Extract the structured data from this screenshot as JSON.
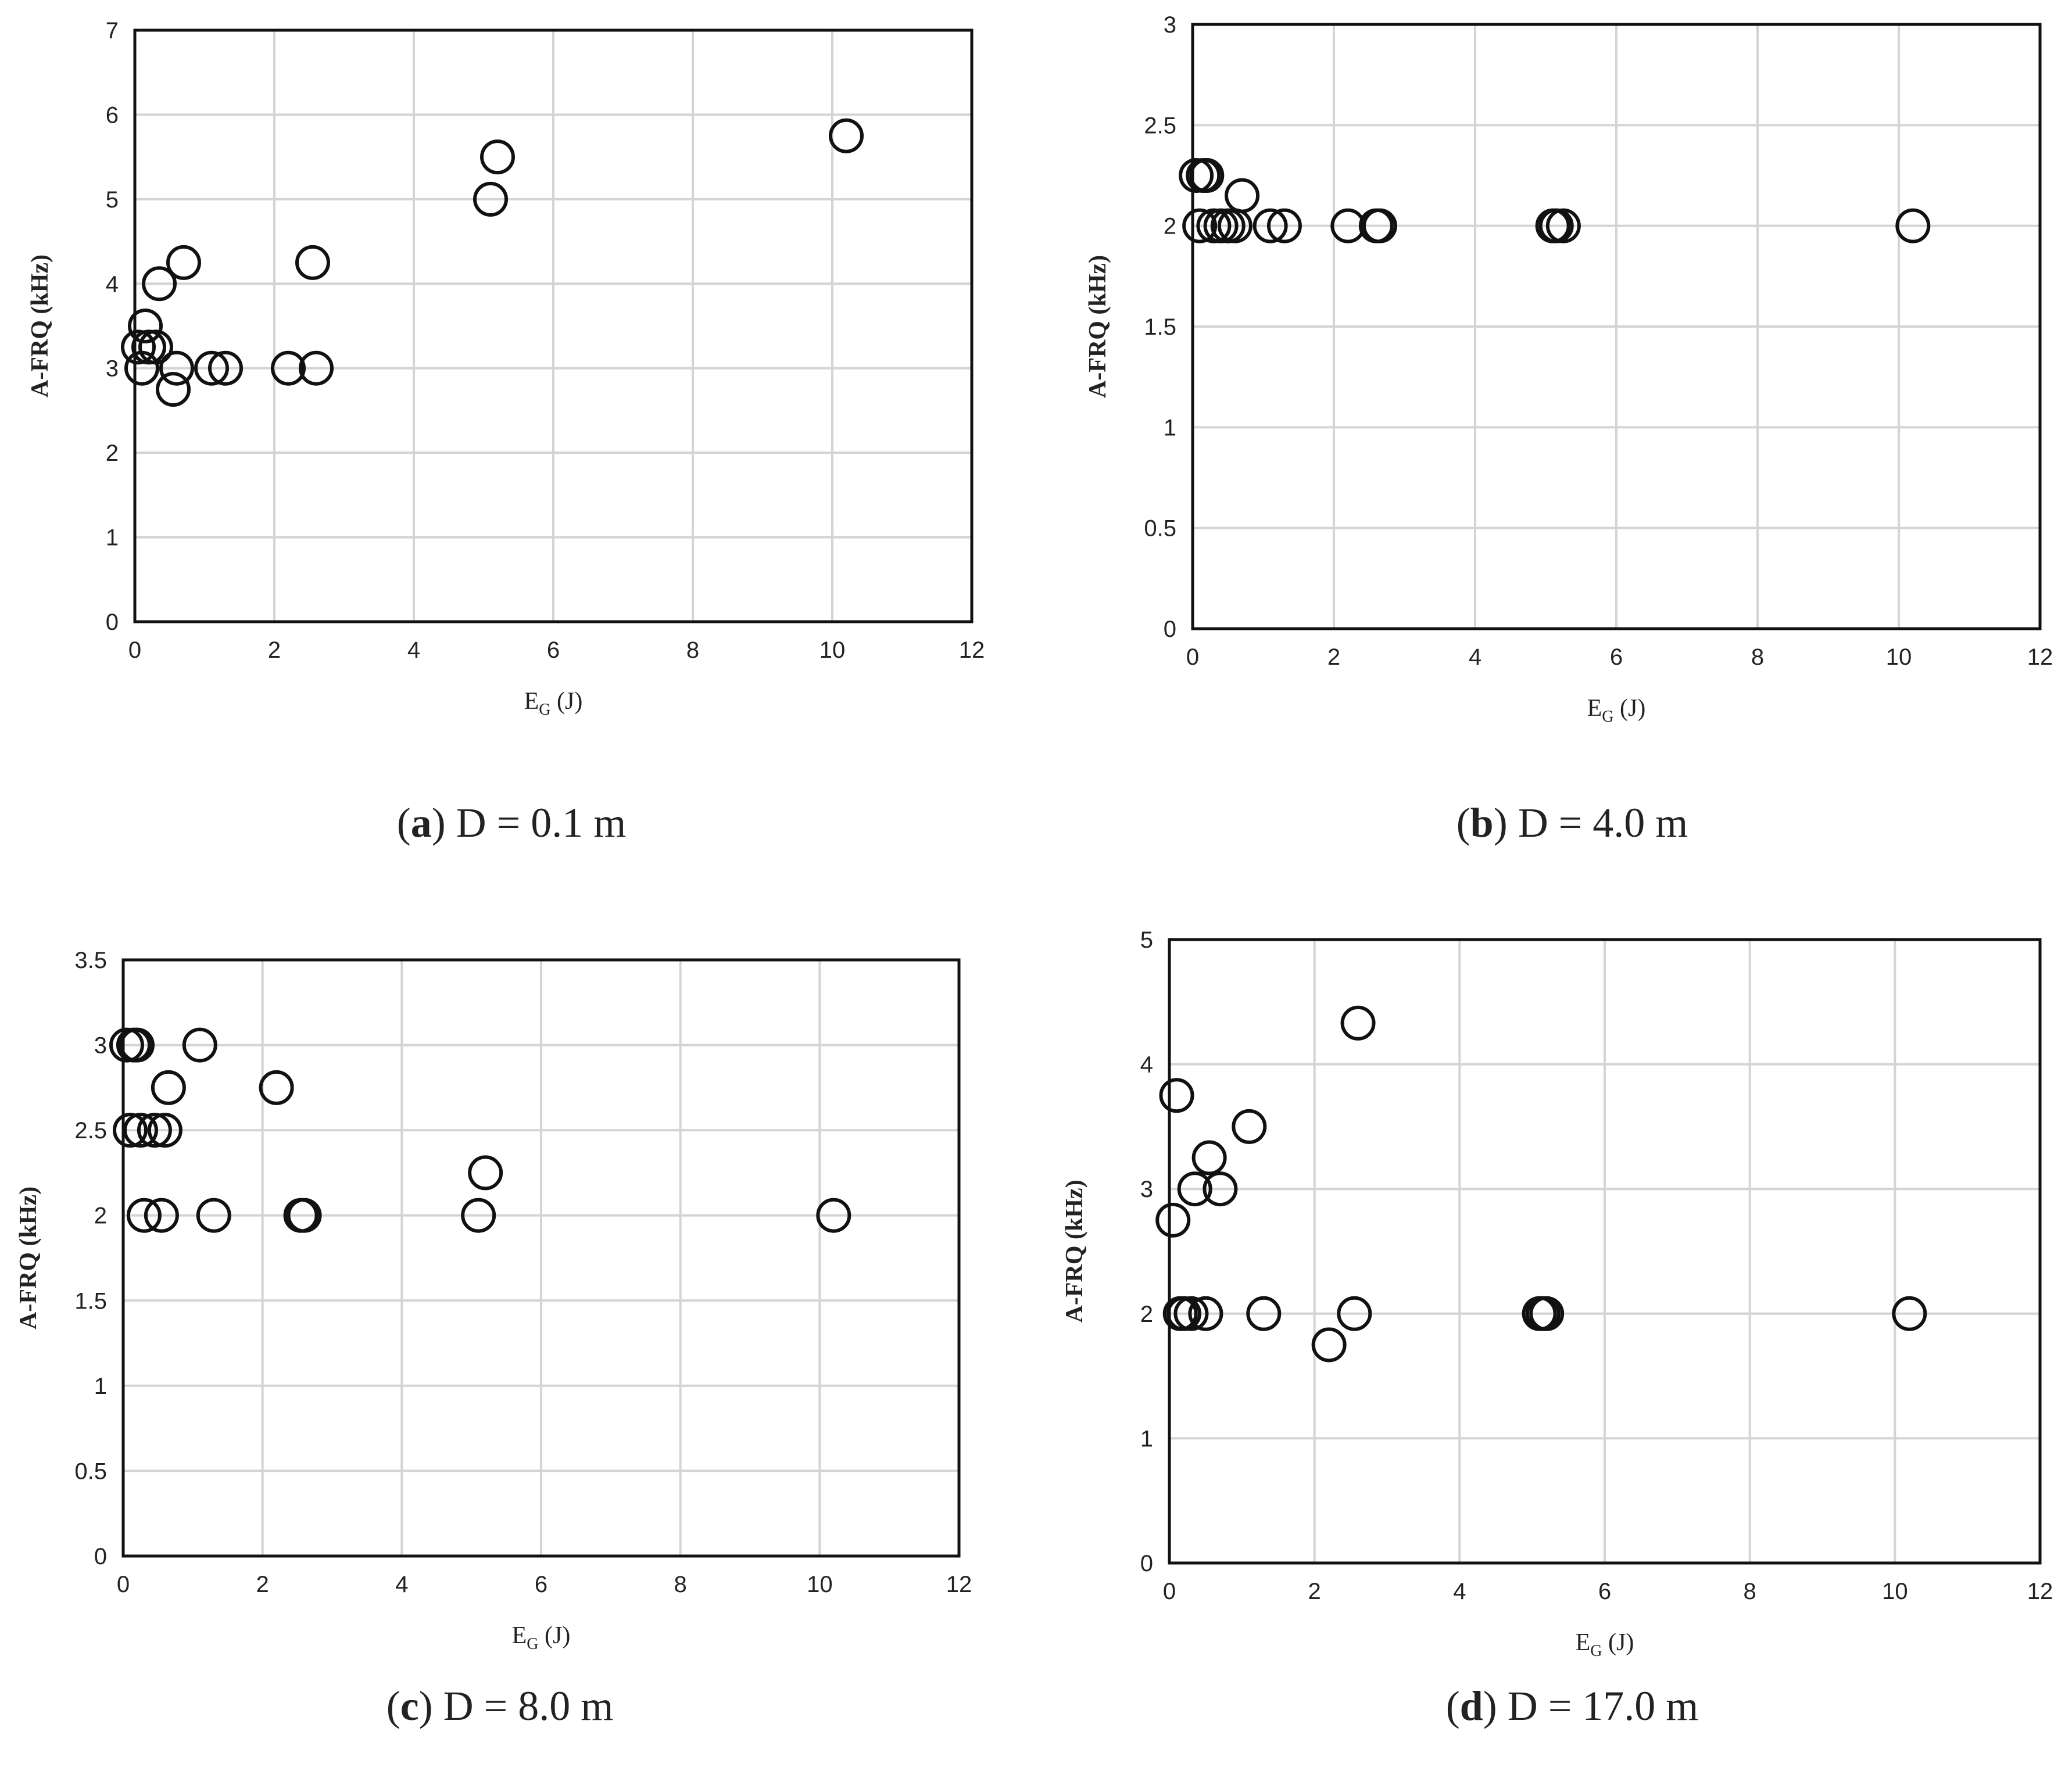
{
  "chart_data": [
    {
      "type": "scatter",
      "caption_letter": "a",
      "caption_text": "D = 0.1 m",
      "xlabel": "E",
      "xlabel_sub": "G",
      "xlabel_unit": "(J)",
      "ylabel": "A-FRQ (kHz)",
      "xlim": [
        0,
        12
      ],
      "ylim": [
        0,
        7
      ],
      "xticks": [
        0,
        2,
        4,
        6,
        8,
        10,
        12
      ],
      "yticks": [
        0,
        1,
        2,
        3,
        4,
        5,
        6,
        7
      ],
      "ytick_labels": [
        "0",
        "1",
        "2",
        "3",
        "4",
        "5",
        "6",
        "7"
      ],
      "grid": true,
      "x": [
        0.05,
        0.1,
        0.15,
        0.2,
        0.3,
        0.35,
        0.55,
        0.6,
        0.7,
        1.1,
        1.3,
        2.2,
        2.55,
        2.6,
        5.1,
        5.2,
        10.2
      ],
      "y": [
        3.25,
        3.0,
        3.5,
        3.25,
        3.25,
        4.0,
        2.75,
        3.0,
        4.25,
        3.0,
        3.0,
        3.0,
        4.25,
        3.0,
        5.0,
        5.5,
        5.75
      ]
    },
    {
      "type": "scatter",
      "caption_letter": "b",
      "caption_text": "D = 4.0 m",
      "xlabel": "E",
      "xlabel_sub": "G",
      "xlabel_unit": "(J)",
      "ylabel": "A-FRQ (kHz)",
      "xlim": [
        0,
        12
      ],
      "ylim": [
        0,
        3
      ],
      "xticks": [
        0,
        2,
        4,
        6,
        8,
        10,
        12
      ],
      "yticks": [
        0,
        0.5,
        1,
        1.5,
        2,
        2.5,
        3
      ],
      "ytick_labels": [
        "0",
        "0.5",
        "1",
        "1.5",
        "2",
        "2.5",
        "3"
      ],
      "grid": true,
      "x": [
        0.05,
        0.1,
        0.15,
        0.2,
        0.3,
        0.4,
        0.5,
        0.6,
        0.7,
        1.1,
        1.3,
        2.2,
        2.6,
        2.65,
        5.1,
        5.15,
        5.25,
        10.2
      ],
      "y": [
        2.25,
        2.0,
        2.25,
        2.25,
        2.0,
        2.0,
        2.0,
        2.0,
        2.15,
        2.0,
        2.0,
        2.0,
        2.0,
        2.0,
        2.0,
        2.0,
        2.0,
        2.0
      ]
    },
    {
      "type": "scatter",
      "caption_letter": "c",
      "caption_text": "D = 8.0 m",
      "xlabel": "E",
      "xlabel_sub": "G",
      "xlabel_unit": "(J)",
      "ylabel": "A-FRQ (kHz)",
      "xlim": [
        0,
        12
      ],
      "ylim": [
        0,
        3.5
      ],
      "xticks": [
        0,
        2,
        4,
        6,
        8,
        10,
        12
      ],
      "yticks": [
        0,
        0.5,
        1,
        1.5,
        2,
        2.5,
        3,
        3.5
      ],
      "ytick_labels": [
        "0",
        "0.5",
        "1",
        "1.5",
        "2",
        "2.5",
        "3",
        "3.5"
      ],
      "grid": true,
      "x": [
        0.05,
        0.1,
        0.15,
        0.2,
        0.25,
        0.3,
        0.45,
        0.55,
        0.6,
        0.65,
        1.1,
        1.3,
        2.2,
        2.55,
        2.6,
        5.1,
        5.2,
        10.2
      ],
      "y": [
        3.0,
        2.5,
        3.0,
        3.0,
        2.5,
        2.0,
        2.5,
        2.0,
        2.5,
        2.75,
        3.0,
        2.0,
        2.75,
        2.0,
        2.0,
        2.0,
        2.25,
        2.0
      ]
    },
    {
      "type": "scatter",
      "caption_letter": "d",
      "caption_text": "D = 17.0 m",
      "xlabel": "E",
      "xlabel_sub": "G",
      "xlabel_unit": "(J)",
      "ylabel": "A-FRQ (kHz)",
      "xlim": [
        0,
        12
      ],
      "ylim": [
        0,
        5
      ],
      "xticks": [
        0,
        2,
        4,
        6,
        8,
        10,
        12
      ],
      "yticks": [
        0,
        1,
        2,
        3,
        4,
        5
      ],
      "ytick_labels": [
        "0",
        "1",
        "2",
        "3",
        "4",
        "5"
      ],
      "grid": true,
      "x": [
        0.05,
        0.1,
        0.15,
        0.2,
        0.3,
        0.35,
        0.5,
        0.55,
        0.7,
        1.1,
        1.3,
        2.2,
        2.55,
        2.6,
        5.1,
        5.15,
        5.2,
        10.2
      ],
      "y": [
        2.75,
        3.75,
        2.0,
        2.0,
        2.0,
        3.0,
        2.0,
        3.25,
        3.0,
        3.5,
        2.0,
        1.75,
        2.0,
        4.33,
        2.0,
        2.0,
        2.0,
        2.0
      ]
    }
  ]
}
